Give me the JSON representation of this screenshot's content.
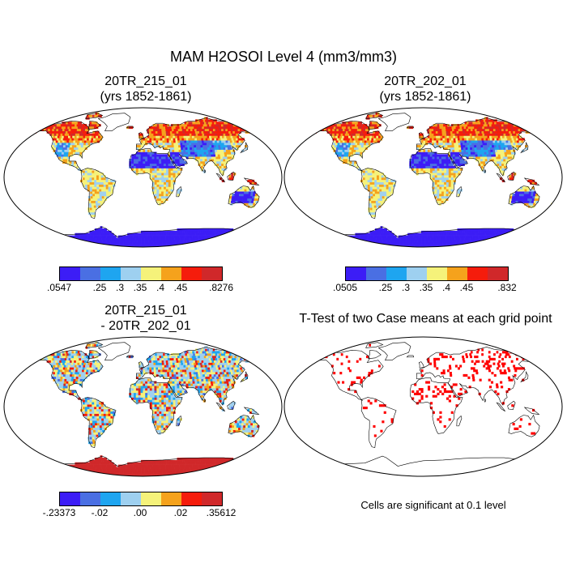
{
  "title": "MAM H2OSOI Level 4 (mm3/mm3)",
  "panels": [
    {
      "id": "a",
      "title_line1": "20TR_215_01",
      "title_line2": "(yrs 1852-1861)",
      "style": "field"
    },
    {
      "id": "b",
      "title_line1": "20TR_202_01",
      "title_line2": "(yrs 1852-1861)",
      "style": "field"
    },
    {
      "id": "c",
      "title_line1": "20TR_215_01",
      "title_line2": "- 20TR_202_01",
      "style": "diff"
    },
    {
      "id": "d",
      "title_line1": "T-Test of two Case means at each grid point",
      "title_line2": "",
      "style": "ttest"
    }
  ],
  "colorbars": [
    {
      "id": "cb-a",
      "colors": [
        "#3c1df6",
        "#4a6fe3",
        "#1ea5f0",
        "#9ed0f0",
        "#f5f27a",
        "#f5a21c",
        "#f51c0c",
        "#d0282a"
      ],
      "labels": [
        ".0547",
        ".25",
        ".3",
        ".35",
        ".4",
        ".45",
        ".8276"
      ]
    },
    {
      "id": "cb-b",
      "colors": [
        "#3c1df6",
        "#4a6fe3",
        "#1ea5f0",
        "#9ed0f0",
        "#f5f27a",
        "#f5a21c",
        "#f51c0c",
        "#d0282a"
      ],
      "labels": [
        ".0505",
        ".25",
        ".3",
        ".35",
        ".4",
        ".45",
        ".832"
      ]
    },
    {
      "id": "cb-c",
      "colors": [
        "#3c1df6",
        "#4a6fe3",
        "#1ea5f0",
        "#9ed0f0",
        "#f5f27a",
        "#f5a21c",
        "#f51c0c",
        "#d0282a"
      ],
      "labels": [
        "-.23373",
        "-.02",
        ".00",
        ".02",
        ".35612"
      ]
    }
  ],
  "significance_color": "#ff0000",
  "note": "Cells are significant at 0.1 level"
}
